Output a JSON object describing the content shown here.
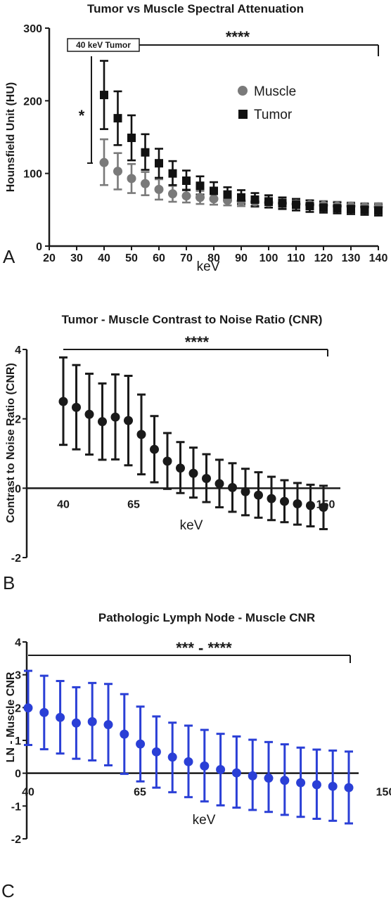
{
  "colors": {
    "muscle": "#7a7a7a",
    "tumor": "#111111",
    "cnr": "#1a1a1a",
    "ln": "#2a3fd6",
    "text": "#1a1a1a"
  },
  "chart_data": [
    {
      "type": "scatter",
      "panel": "A",
      "title": "Tumor vs Muscle Spectral  Attenuation",
      "xlabel": "keV",
      "ylabel": "Hounsfield Unit (HU)",
      "xlim": [
        20,
        140
      ],
      "ylim": [
        0,
        300
      ],
      "x_ticks": [
        "20",
        "30",
        "40",
        "50",
        "60",
        "70",
        "80",
        "90",
        "100",
        "110",
        "120",
        "130",
        "140"
      ],
      "y_ticks": [
        "0",
        "100",
        "200",
        "300"
      ],
      "legend": [
        "Muscle",
        "Tumor"
      ],
      "legend_position": "top-right",
      "x": [
        40,
        45,
        50,
        55,
        60,
        65,
        70,
        75,
        80,
        85,
        90,
        95,
        100,
        105,
        110,
        115,
        120,
        125,
        130,
        135,
        140
      ],
      "series": [
        {
          "name": "Muscle",
          "marker": "circle",
          "values": [
            115,
            103,
            93,
            86,
            78,
            72,
            69,
            67,
            65,
            63,
            62,
            61,
            60,
            59,
            58,
            57,
            56,
            55,
            55,
            54,
            54
          ],
          "err_low": [
            84,
            78,
            73,
            70,
            64,
            61,
            60,
            58,
            57,
            56,
            55,
            54,
            53,
            53,
            52,
            51,
            51,
            50,
            50,
            49,
            49
          ],
          "err_high": [
            147,
            128,
            113,
            102,
            92,
            83,
            78,
            76,
            73,
            70,
            69,
            68,
            67,
            65,
            64,
            63,
            62,
            61,
            60,
            59,
            59
          ]
        },
        {
          "name": "Tumor",
          "marker": "square",
          "values": [
            208,
            176,
            149,
            129,
            114,
            100,
            90,
            83,
            76,
            71,
            67,
            64,
            61,
            59,
            57,
            55,
            53,
            52,
            51,
            50,
            49
          ],
          "err_low": [
            161,
            139,
            118,
            105,
            94,
            84,
            77,
            71,
            66,
            62,
            58,
            55,
            53,
            51,
            49,
            47,
            46,
            45,
            44,
            43,
            42
          ],
          "err_high": [
            255,
            213,
            180,
            154,
            134,
            117,
            104,
            96,
            88,
            81,
            77,
            73,
            70,
            67,
            65,
            63,
            61,
            60,
            59,
            58,
            57
          ]
        }
      ],
      "annotations": {
        "box": "40 keV Tumor",
        "star_left": "*",
        "star_top": "****"
      }
    },
    {
      "type": "scatter",
      "panel": "B",
      "title": "Tumor - Muscle Contrast to Noise Ratio (CNR)",
      "xlabel": "keV",
      "ylabel": "Contrast to Noise Ratio (CNR)",
      "ylim": [
        -2,
        4
      ],
      "x_ticks": [
        "40",
        "65",
        "150"
      ],
      "y_ticks": [
        "-2",
        "0",
        "2",
        "4"
      ],
      "x": [
        40,
        45,
        50,
        55,
        60,
        65,
        70,
        75,
        80,
        85,
        90,
        95,
        100,
        105,
        110,
        115,
        120,
        125,
        130,
        135,
        140
      ],
      "series": [
        {
          "name": "",
          "marker": "circle",
          "values": [
            2.5,
            2.33,
            2.13,
            1.92,
            2.05,
            1.95,
            1.55,
            1.12,
            0.78,
            0.58,
            0.43,
            0.28,
            0.13,
            0.02,
            -0.1,
            -0.2,
            -0.3,
            -0.38,
            -0.45,
            -0.5,
            -0.55
          ],
          "err_low": [
            1.25,
            1.12,
            0.97,
            0.82,
            0.83,
            0.66,
            0.4,
            0.17,
            -0.02,
            -0.14,
            -0.27,
            -0.4,
            -0.55,
            -0.68,
            -0.78,
            -0.85,
            -0.92,
            -0.98,
            -1.05,
            -1.1,
            -1.18
          ],
          "err_high": [
            3.77,
            3.55,
            3.3,
            3.02,
            3.28,
            3.24,
            2.7,
            2.08,
            1.59,
            1.33,
            1.17,
            0.98,
            0.82,
            0.72,
            0.56,
            0.46,
            0.33,
            0.23,
            0.15,
            0.1,
            0.07
          ]
        }
      ],
      "annotations": {
        "star_top": "****"
      }
    },
    {
      "type": "scatter",
      "panel": "C",
      "title": "Pathologic Lymph Node - Muscle CNR",
      "xlabel": "keV",
      "ylabel": "LN - Muscle CNR",
      "ylim": [
        -2,
        4
      ],
      "x_ticks": [
        "40",
        "65",
        "150"
      ],
      "y_ticks": [
        "-2",
        "-1",
        "0",
        "1",
        "2",
        "3",
        "4"
      ],
      "x": [
        40,
        45,
        50,
        55,
        60,
        65,
        70,
        75,
        80,
        85,
        90,
        95,
        100,
        105,
        110,
        115,
        120,
        125,
        130,
        135,
        140
      ],
      "series": [
        {
          "name": "",
          "marker": "circle",
          "values": [
            1.99,
            1.85,
            1.7,
            1.53,
            1.57,
            1.48,
            1.19,
            0.89,
            0.65,
            0.49,
            0.35,
            0.22,
            0.11,
            0.01,
            -0.08,
            -0.15,
            -0.22,
            -0.29,
            -0.35,
            -0.4,
            -0.44
          ],
          "err_low": [
            0.86,
            0.73,
            0.6,
            0.44,
            0.39,
            0.24,
            -0.02,
            -0.25,
            -0.44,
            -0.58,
            -0.73,
            -0.86,
            -0.98,
            -1.05,
            -1.12,
            -1.18,
            -1.27,
            -1.33,
            -1.39,
            -1.45,
            -1.53
          ],
          "err_high": [
            3.12,
            2.97,
            2.81,
            2.62,
            2.75,
            2.72,
            2.41,
            2.03,
            1.73,
            1.54,
            1.45,
            1.32,
            1.2,
            1.12,
            1.02,
            0.95,
            0.88,
            0.78,
            0.72,
            0.69,
            0.66
          ]
        }
      ],
      "annotations": {
        "star_top": "*** - ****"
      }
    }
  ]
}
